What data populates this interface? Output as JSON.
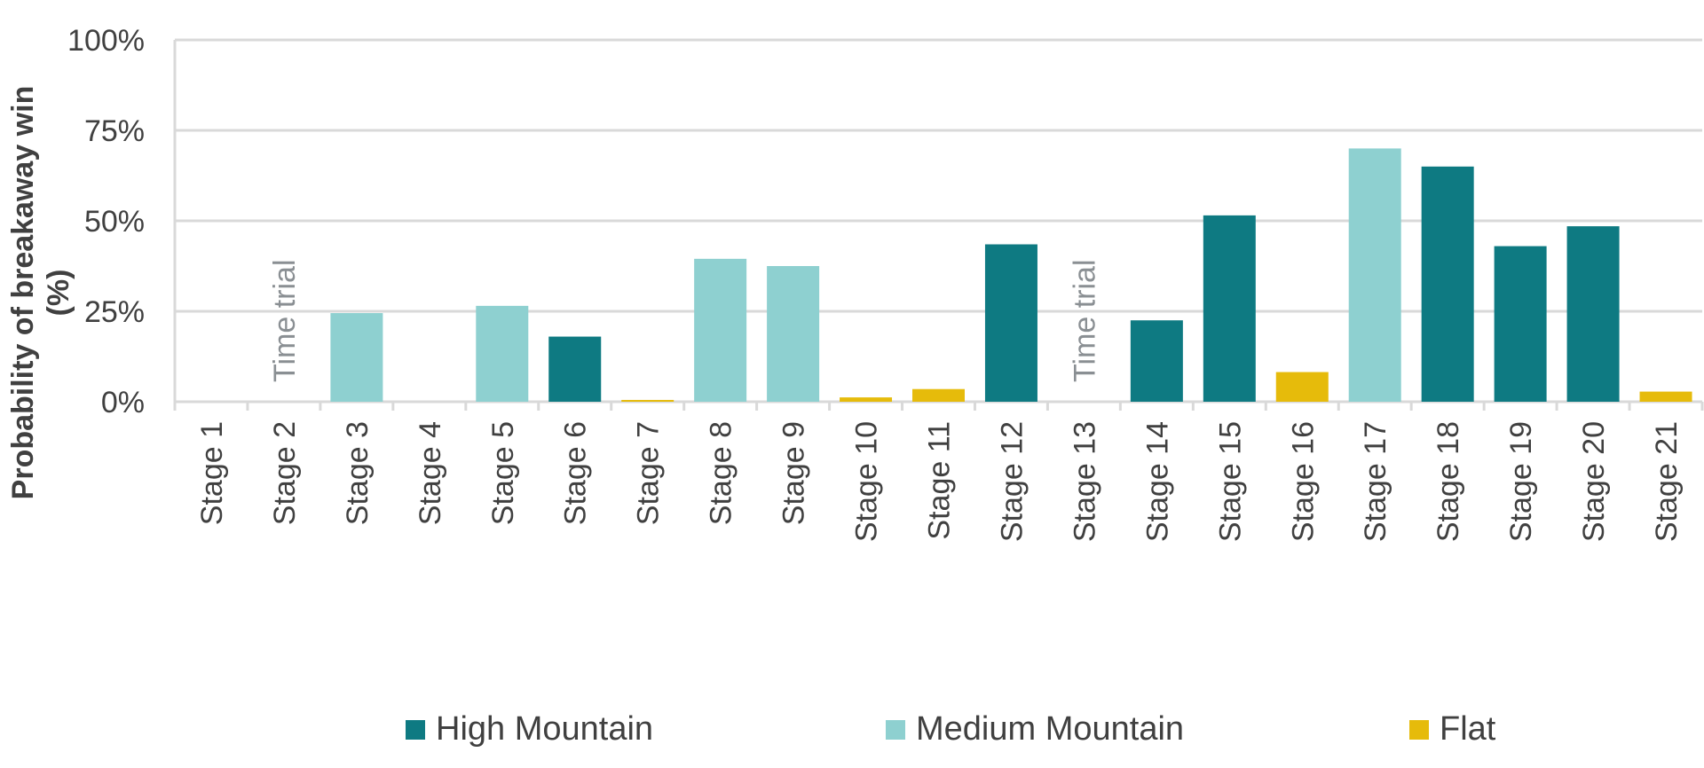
{
  "chart_data": {
    "type": "bar",
    "ylabel_lines": [
      "Probability of breakaway win",
      "(%)"
    ],
    "ylim": [
      0,
      100
    ],
    "yticks": [
      0,
      25,
      50,
      75,
      100
    ],
    "ytick_labels": [
      "0%",
      "25%",
      "50%",
      "75%",
      "100%"
    ],
    "grid": true,
    "legend_position": "bottom",
    "categories": [
      "Stage 1",
      "Stage 2",
      "Stage 3",
      "Stage 4",
      "Stage 5",
      "Stage 6",
      "Stage 7",
      "Stage 8",
      "Stage 9",
      "Stage 10",
      "Stage 11",
      "Stage 12",
      "Stage 13",
      "Stage 14",
      "Stage 15",
      "Stage 16",
      "Stage 17",
      "Stage 18",
      "Stage 19",
      "Stage 20",
      "Stage 21"
    ],
    "values": [
      0,
      0,
      24.5,
      0,
      26.5,
      18,
      0.5,
      39.5,
      37.5,
      1.2,
      3.5,
      43.5,
      0,
      22.5,
      51.5,
      8.2,
      70,
      65,
      43,
      48.5,
      2.8
    ],
    "bar_types": [
      "none",
      "tt",
      "medium",
      "none",
      "medium",
      "high",
      "flat",
      "medium",
      "medium",
      "flat",
      "flat",
      "high",
      "tt",
      "high",
      "high",
      "flat",
      "medium",
      "high",
      "high",
      "high",
      "flat"
    ],
    "annotations": [
      {
        "category": "Stage 2",
        "text": "Time trial"
      },
      {
        "category": "Stage 13",
        "text": "Time trial"
      }
    ],
    "series": [
      {
        "key": "high",
        "name": "High Mountain",
        "color": "#0e7a82"
      },
      {
        "key": "medium",
        "name": "Medium Mountain",
        "color": "#8ed0d0"
      },
      {
        "key": "flat",
        "name": "Flat",
        "color": "#e6bb0b"
      }
    ],
    "grid_color": "#d9d9d9",
    "axis_color": "#d9d9d9"
  }
}
